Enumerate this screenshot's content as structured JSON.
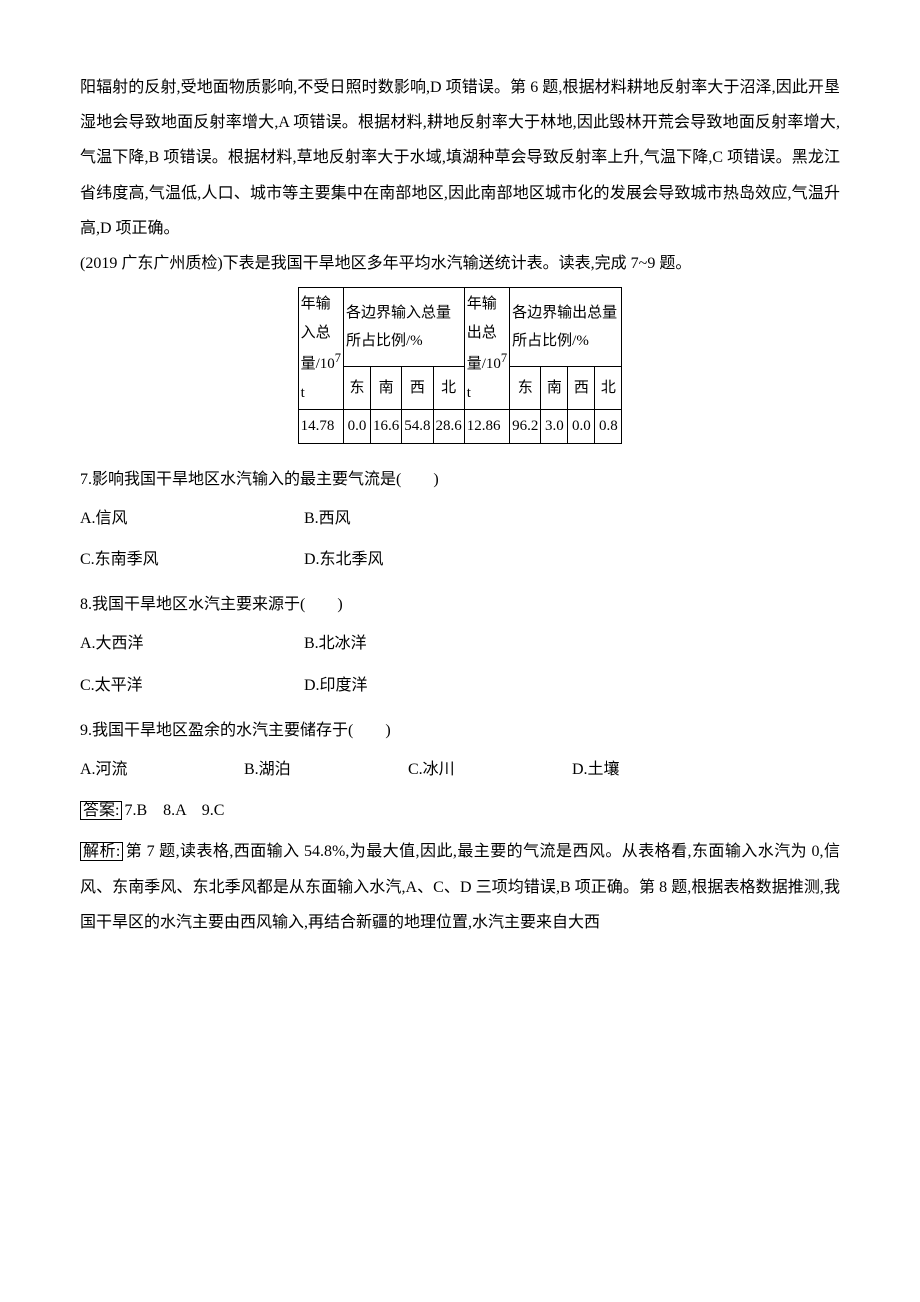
{
  "para1": "阳辐射的反射,受地面物质影响,不受日照时数影响,D 项错误。第 6 题,根据材料耕地反射率大于沼泽,因此开垦湿地会导致地面反射率增大,A 项错误。根据材料,耕地反射率大于林地,因此毁林开荒会导致地面反射率增大,气温下降,B 项错误。根据材料,草地反射率大于水域,填湖种草会导致反射率上升,气温下降,C 项错误。黑龙江省纬度高,气温低,人口、城市等主要集中在南部地区,因此南部地区城市化的发展会导致城市热岛效应,气温升高,D 项正确。",
  "prompt": "(2019 广东广州质检)下表是我国干旱地区多年平均水汽输送统计表。读表,完成 7~9 题。",
  "table": {
    "rowhead": {
      "in_label": "年输入总量/10",
      "in_exp": "7",
      "in_unit": " t",
      "out_label": "年输出总量/10",
      "out_exp": "7",
      "out_unit": " t",
      "ratio_in": "各边界输入总量所占比例/%",
      "ratio_out": "各边界输出总量",
      "ratio_out2": "所占比例/%"
    },
    "dirs": {
      "e": "东",
      "s": "南",
      "w": "西",
      "n": "北"
    },
    "in_total": "14.78",
    "in_vals": {
      "e": "0.0",
      "s": "16.6",
      "w": "54.8",
      "n": "28.6"
    },
    "out_total": "12.86",
    "out_vals": {
      "e": "96.2",
      "s": "3.0",
      "w": "0.0",
      "n": "0.8"
    }
  },
  "q7": {
    "text": "7.影响我国干旱地区水汽输入的最主要气流是(　　)",
    "A": "A.信风",
    "B": "B.西风",
    "C": "C.东南季风",
    "D": "D.东北季风"
  },
  "q8": {
    "text": "8.我国干旱地区水汽主要来源于(　　)",
    "A": "A.大西洋",
    "B": "B.北冰洋",
    "C": "C.太平洋",
    "D": "D.印度洋"
  },
  "q9": {
    "text": "9.我国干旱地区盈余的水汽主要储存于(　　)",
    "A": "A.河流",
    "B": "B.湖泊",
    "C": "C.冰川",
    "D": "D.土壤"
  },
  "answer_label": "答案:",
  "answer_text": "7.B　8.A　9.C",
  "analysis_label": "解析:",
  "analysis_text": "第 7 题,读表格,西面输入 54.8%,为最大值,因此,最主要的气流是西风。从表格看,东面输入水汽为 0,信风、东南季风、东北季风都是从东面输入水汽,A、C、D 三项均错误,B 项正确。第 8 题,根据表格数据推测,我国干旱区的水汽主要由西风输入,再结合新疆的地理位置,水汽主要来自大西"
}
